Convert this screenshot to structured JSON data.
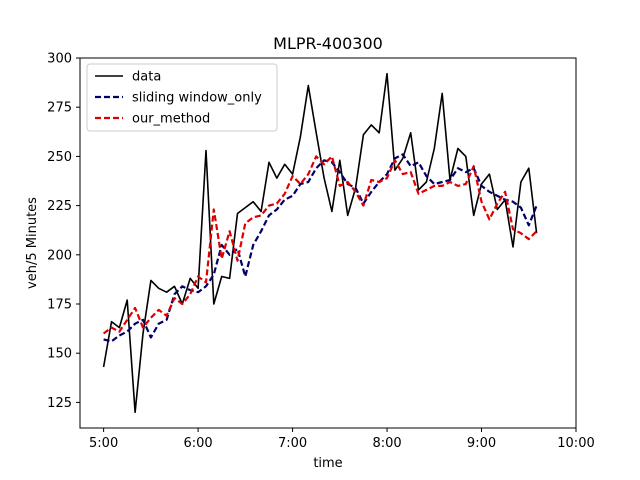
{
  "chart_data": {
    "type": "line",
    "title": "MLPR-400300",
    "xlabel": "time",
    "ylabel": "veh/5 Minutes",
    "xlim": [
      -3,
      60
    ],
    "ylim": [
      112,
      300
    ],
    "x_ticks": [
      {
        "value": 0,
        "label": "5:00"
      },
      {
        "value": 12,
        "label": "6:00"
      },
      {
        "value": 24,
        "label": "7:00"
      },
      {
        "value": 36,
        "label": "8:00"
      },
      {
        "value": 48,
        "label": "9:00"
      },
      {
        "value": 60,
        "label": "10:00"
      }
    ],
    "y_ticks": [
      125,
      150,
      175,
      200,
      225,
      250,
      275,
      300
    ],
    "legend_position": "upper-left",
    "series": [
      {
        "name": "data",
        "color": "#000000",
        "dash": "solid",
        "values": [
          143,
          166,
          163,
          177,
          120,
          160,
          187,
          183,
          181,
          184,
          175,
          188,
          183,
          253,
          175,
          189,
          188,
          221,
          224,
          227,
          222,
          247,
          239,
          246,
          241,
          260,
          286,
          262,
          239,
          222,
          248,
          220,
          234,
          261,
          266,
          262,
          292,
          243,
          249,
          262,
          233,
          237,
          254,
          282,
          238,
          254,
          250,
          220,
          236,
          241,
          223,
          228,
          204,
          237,
          244,
          211
        ]
      },
      {
        "name": "sliding window_only",
        "color": "#00006b",
        "dash": "dashed",
        "values": [
          157,
          156,
          159,
          161,
          165,
          167,
          158,
          165,
          167,
          180,
          184,
          182,
          181,
          184,
          190,
          205,
          200,
          203,
          189,
          205,
          212,
          220,
          223,
          228,
          230,
          236,
          237,
          244,
          248,
          247,
          242,
          236,
          234,
          226,
          232,
          237,
          241,
          249,
          251,
          245,
          247,
          240,
          236,
          237,
          238,
          244,
          242,
          244,
          235,
          232,
          230,
          228,
          227,
          224,
          215,
          225
        ]
      },
      {
        "name": "our_method",
        "color": "#dd0000",
        "dash": "dashed",
        "values": [
          160,
          163,
          161,
          167,
          173,
          163,
          168,
          172,
          169,
          178,
          175,
          180,
          189,
          186,
          223,
          198,
          212,
          197,
          216,
          219,
          220,
          225,
          226,
          231,
          240,
          236,
          241,
          250,
          246,
          250,
          235,
          237,
          232,
          225,
          238,
          237,
          239,
          248,
          241,
          242,
          231,
          233,
          235,
          235,
          237,
          235,
          236,
          245,
          227,
          218,
          226,
          232,
          213,
          211,
          208,
          212
        ]
      }
    ]
  }
}
